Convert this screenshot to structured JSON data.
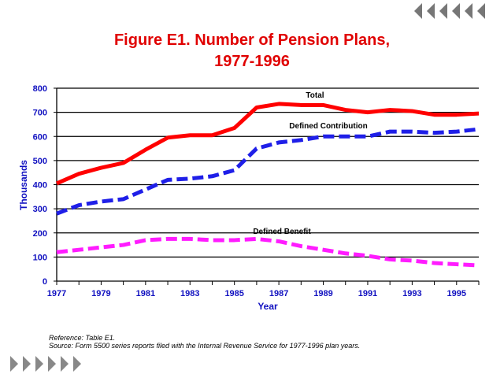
{
  "chart_data": {
    "type": "line",
    "title": "Figure E1. Number of Pension Plans,",
    "title_line2": "1977-1996",
    "xlabel": "Year",
    "ylabel": "Thousands",
    "ylim": [
      0,
      800
    ],
    "yticks": [
      "0",
      "100",
      "200",
      "300",
      "400",
      "500",
      "600",
      "700",
      "800"
    ],
    "x": [
      1977,
      1978,
      1979,
      1980,
      1981,
      1982,
      1983,
      1984,
      1985,
      1986,
      1987,
      1988,
      1989,
      1990,
      1991,
      1992,
      1993,
      1994,
      1995,
      1996
    ],
    "xtick_labels": [
      "1977",
      "1979",
      "1981",
      "1983",
      "1985",
      "1987",
      "1989",
      "1991",
      "1993",
      "1995"
    ],
    "grid": true,
    "series": [
      {
        "name": "Total",
        "color": "#ff0000",
        "dash": "",
        "values": [
          405,
          445,
          470,
          490,
          545,
          595,
          605,
          605,
          635,
          720,
          735,
          730,
          730,
          710,
          700,
          710,
          705,
          690,
          690,
          695
        ]
      },
      {
        "name": "Defined Contribution",
        "color": "#1f1fe8",
        "dash": "14 6",
        "values": [
          280,
          315,
          330,
          340,
          380,
          420,
          425,
          435,
          460,
          550,
          575,
          585,
          600,
          600,
          600,
          620,
          620,
          615,
          620,
          630
        ]
      },
      {
        "name": "Defined Benefit",
        "color": "#ff1cff",
        "dash": "14 6",
        "values": [
          120,
          130,
          140,
          150,
          170,
          175,
          175,
          170,
          170,
          175,
          165,
          145,
          130,
          115,
          105,
          90,
          85,
          75,
          70,
          65
        ]
      }
    ]
  },
  "reference": "Reference: Table E1.",
  "source": "Source: Form 5500 series reports filed with the Internal Revenue Service for 1977-1996 plan years."
}
